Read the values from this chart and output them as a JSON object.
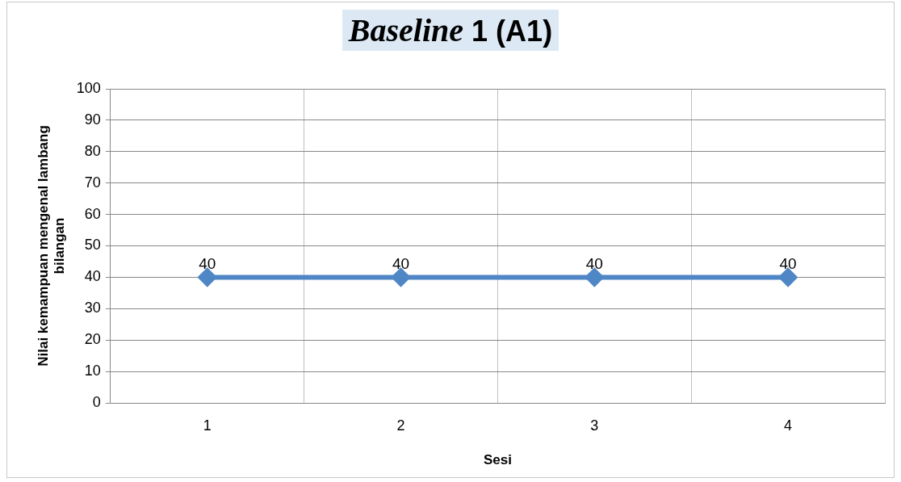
{
  "chart_data": {
    "type": "line",
    "title": "Baseline 1 (A1)",
    "xlabel": "Sesi",
    "ylabel": "Nilai kemampuan mengenal lambang bilangan",
    "categories": [
      "1",
      "2",
      "3",
      "4"
    ],
    "series": [
      {
        "color": "#4f86c6",
        "values": [
          40,
          40,
          40,
          40
        ]
      }
    ],
    "ylim": [
      0,
      100
    ],
    "yticks": [
      0,
      10,
      20,
      30,
      40,
      50,
      60,
      70,
      80,
      90,
      100
    ],
    "grid": true,
    "legend": false,
    "marker": "diamond",
    "line_style": "solid",
    "data_labels": true
  }
}
